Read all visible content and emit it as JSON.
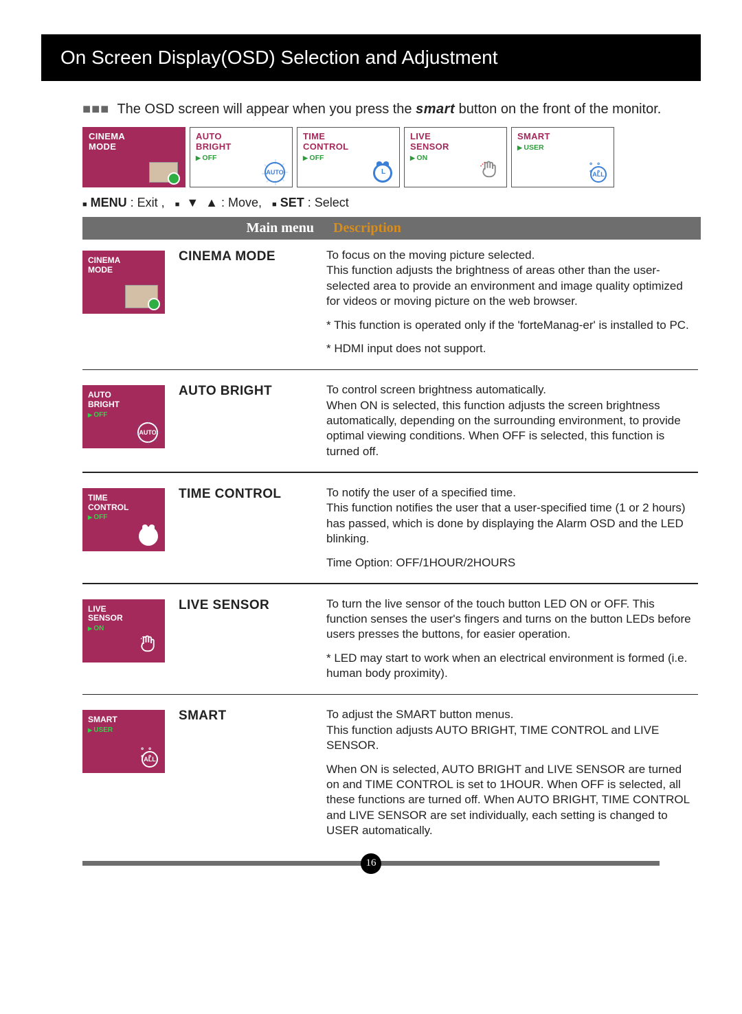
{
  "colors": {
    "accent": "#a32a5a",
    "header_bg": "#6e6e6e",
    "desc_heading": "#d98c1a",
    "status_green": "#2a9d3a"
  },
  "title": "On Screen Display(OSD) Selection and Adjustment",
  "intro_prefix": "The OSD screen will appear when you press the",
  "intro_smart": "smart",
  "intro_suffix": " button on the front of the monitor.",
  "tiles": {
    "cinema": {
      "label1": "CINEMA",
      "label2": "MODE"
    },
    "auto": {
      "label1": "AUTO",
      "label2": "BRIGHT",
      "status": "OFF"
    },
    "time": {
      "label1": "TIME",
      "label2": "CONTROL",
      "status": "OFF"
    },
    "live": {
      "label1": "LIVE",
      "label2": "SENSOR",
      "status": "ON"
    },
    "smart": {
      "label1": "SMART",
      "status": "USER"
    }
  },
  "nav": {
    "menu_label": "MENU",
    "menu_action": " : Exit ,",
    "move_action": " : Move,",
    "set_label": "SET",
    "set_action": "   : Select"
  },
  "table_header": {
    "main_menu": "Main menu",
    "description": "Description"
  },
  "sections": [
    {
      "thumb": {
        "label1": "CINEMA",
        "label2": "MODE",
        "icon": "cinema"
      },
      "label": "CINEMA MODE",
      "paras": [
        "To focus on the moving picture selected.\nThis function adjusts the brightness of areas other than the user-selected area to provide an environment and image quality optimized for videos or moving picture on the web browser.",
        "* This function is operated only if the 'forteManag-er' is installed to PC.",
        "* HDMI input does not support."
      ]
    },
    {
      "thumb": {
        "label1": "AUTO",
        "label2": "BRIGHT",
        "status": "OFF",
        "icon": "autobright"
      },
      "label": "AUTO BRIGHT",
      "paras": [
        "To control screen brightness automatically.\nWhen ON is selected, this function adjusts the screen brightness automatically, depending on the surrounding environment, to provide optimal viewing conditions. When OFF is selected, this function is turned off."
      ]
    },
    {
      "thumb": {
        "label1": "TIME",
        "label2": "CONTROL",
        "status": "OFF",
        "icon": "clock"
      },
      "label": "TIME CONTROL",
      "paras": [
        "To notify the user of a specified time.\nThis function notifies the user that a user-specified time (1 or 2 hours) has passed, which is done by displaying the Alarm OSD and the LED blinking.",
        "Time Option: OFF/1HOUR/2HOURS"
      ]
    },
    {
      "thumb": {
        "label1": "LIVE",
        "label2": "SENSOR",
        "status": "ON",
        "icon": "hand"
      },
      "label": "LIVE SENSOR",
      "paras": [
        "To turn the live sensor of the touch button LED ON or OFF. This function senses the user's fingers and turns on the button LEDs before users presses the buttons, for easier operation.",
        "* LED may start to work when an electrical environment is formed (i.e. human body proximity)."
      ]
    },
    {
      "thumb": {
        "label1": "SMART",
        "status": "USER",
        "icon": "bulb"
      },
      "label": "SMART",
      "paras": [
        "To adjust the SMART button menus.\nThis function adjusts AUTO BRIGHT, TIME CONTROL and LIVE SENSOR.",
        "When ON is selected, AUTO BRIGHT and LIVE SENSOR are turned on and TIME CONTROL is set to 1HOUR. When OFF is selected, all these functions are turned off. When AUTO BRIGHT, TIME CONTROL and LIVE SENSOR are set individually, each setting is changed to USER automatically."
      ]
    }
  ],
  "page_number": "16"
}
